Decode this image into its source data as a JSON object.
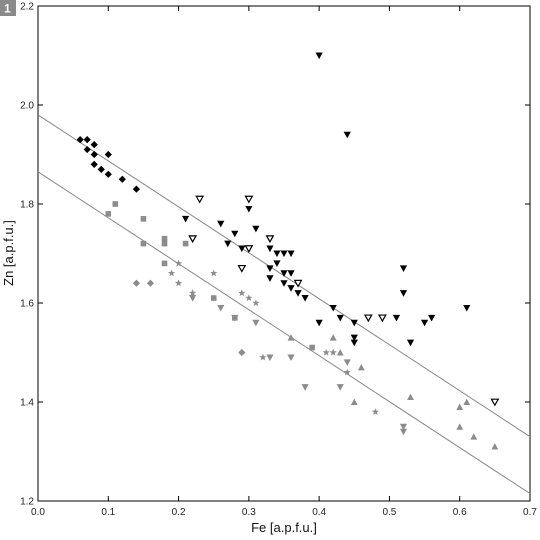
{
  "figure": {
    "panel_label": "1"
  },
  "chart_data": {
    "type": "scatter",
    "title": "",
    "xlabel": "Fe [a.p.f.u.]",
    "ylabel": "Zn [a.p.f.u.]",
    "xlim": [
      0.0,
      0.7
    ],
    "ylim": [
      1.2,
      2.2
    ],
    "x_ticks": [
      "0.0",
      "0.1",
      "0.2",
      "0.3",
      "0.4",
      "0.5",
      "0.6",
      "0.7"
    ],
    "y_ticks": [
      "1.2",
      "1.4",
      "1.6",
      "1.8",
      "2.0",
      "2.2"
    ],
    "grid": false,
    "legend": "none",
    "trend_lines": [
      {
        "x": [
          0.0,
          0.7
        ],
        "y": [
          1.98,
          1.33
        ],
        "color": "#888888"
      },
      {
        "x": [
          0.0,
          0.7
        ],
        "y": [
          1.865,
          1.215
        ],
        "color": "#888888"
      }
    ],
    "series": [
      {
        "marker": "diamond",
        "color": "#000000",
        "points": [
          [
            0.06,
            1.93
          ],
          [
            0.07,
            1.93
          ],
          [
            0.08,
            1.92
          ],
          [
            0.07,
            1.91
          ],
          [
            0.08,
            1.9
          ],
          [
            0.1,
            1.9
          ],
          [
            0.08,
            1.88
          ],
          [
            0.09,
            1.87
          ],
          [
            0.1,
            1.86
          ],
          [
            0.12,
            1.85
          ],
          [
            0.14,
            1.83
          ]
        ]
      },
      {
        "marker": "triangle-down",
        "color": "#000000",
        "points": [
          [
            0.4,
            2.1
          ],
          [
            0.44,
            1.94
          ],
          [
            0.3,
            1.81
          ],
          [
            0.3,
            1.79
          ],
          [
            0.31,
            1.75
          ],
          [
            0.26,
            1.76
          ],
          [
            0.21,
            1.77
          ],
          [
            0.28,
            1.74
          ],
          [
            0.27,
            1.72
          ],
          [
            0.29,
            1.71
          ],
          [
            0.33,
            1.71
          ],
          [
            0.34,
            1.7
          ],
          [
            0.35,
            1.7
          ],
          [
            0.36,
            1.7
          ],
          [
            0.34,
            1.68
          ],
          [
            0.33,
            1.67
          ],
          [
            0.35,
            1.66
          ],
          [
            0.36,
            1.66
          ],
          [
            0.33,
            1.65
          ],
          [
            0.35,
            1.64
          ],
          [
            0.37,
            1.64
          ],
          [
            0.36,
            1.63
          ],
          [
            0.37,
            1.62
          ],
          [
            0.38,
            1.61
          ],
          [
            0.42,
            1.59
          ],
          [
            0.43,
            1.57
          ],
          [
            0.45,
            1.56
          ],
          [
            0.4,
            1.56
          ],
          [
            0.45,
            1.53
          ],
          [
            0.45,
            1.52
          ],
          [
            0.52,
            1.67
          ],
          [
            0.52,
            1.62
          ],
          [
            0.51,
            1.57
          ],
          [
            0.55,
            1.56
          ],
          [
            0.56,
            1.57
          ],
          [
            0.53,
            1.52
          ],
          [
            0.61,
            1.59
          ]
        ]
      },
      {
        "marker": "triangle-down-open",
        "color": "#000000",
        "points": [
          [
            0.23,
            1.81
          ],
          [
            0.3,
            1.81
          ],
          [
            0.22,
            1.73
          ],
          [
            0.3,
            1.71
          ],
          [
            0.33,
            1.73
          ],
          [
            0.29,
            1.67
          ],
          [
            0.37,
            1.64
          ],
          [
            0.47,
            1.57
          ],
          [
            0.49,
            1.57
          ],
          [
            0.65,
            1.4
          ]
        ]
      },
      {
        "marker": "square",
        "color": "#8c8c8c",
        "points": [
          [
            0.1,
            1.78
          ],
          [
            0.11,
            1.8
          ],
          [
            0.15,
            1.77
          ],
          [
            0.18,
            1.73
          ],
          [
            0.18,
            1.72
          ],
          [
            0.21,
            1.72
          ],
          [
            0.15,
            1.72
          ],
          [
            0.18,
            1.68
          ],
          [
            0.25,
            1.61
          ],
          [
            0.28,
            1.57
          ],
          [
            0.39,
            1.51
          ]
        ]
      },
      {
        "marker": "diamond",
        "color": "#8c8c8c",
        "points": [
          [
            0.14,
            1.64
          ],
          [
            0.16,
            1.64
          ],
          [
            0.29,
            1.5
          ]
        ]
      },
      {
        "marker": "star",
        "color": "#8c8c8c",
        "points": [
          [
            0.2,
            1.68
          ],
          [
            0.19,
            1.66
          ],
          [
            0.2,
            1.64
          ],
          [
            0.22,
            1.62
          ],
          [
            0.25,
            1.66
          ],
          [
            0.29,
            1.62
          ],
          [
            0.3,
            1.61
          ],
          [
            0.31,
            1.6
          ],
          [
            0.32,
            1.49
          ],
          [
            0.41,
            1.5
          ],
          [
            0.42,
            1.5
          ],
          [
            0.44,
            1.46
          ],
          [
            0.48,
            1.38
          ]
        ]
      },
      {
        "marker": "triangle-down",
        "color": "#8c8c8c",
        "points": [
          [
            0.22,
            1.61
          ],
          [
            0.26,
            1.59
          ],
          [
            0.28,
            1.57
          ],
          [
            0.31,
            1.56
          ],
          [
            0.33,
            1.49
          ],
          [
            0.36,
            1.49
          ],
          [
            0.38,
            1.43
          ],
          [
            0.43,
            1.43
          ],
          [
            0.44,
            1.48
          ],
          [
            0.52,
            1.35
          ],
          [
            0.52,
            1.34
          ]
        ]
      },
      {
        "marker": "triangle-up",
        "color": "#8c8c8c",
        "points": [
          [
            0.36,
            1.53
          ],
          [
            0.42,
            1.53
          ],
          [
            0.43,
            1.5
          ],
          [
            0.46,
            1.47
          ],
          [
            0.45,
            1.4
          ],
          [
            0.53,
            1.41
          ],
          [
            0.6,
            1.39
          ],
          [
            0.6,
            1.35
          ],
          [
            0.61,
            1.4
          ],
          [
            0.62,
            1.33
          ],
          [
            0.65,
            1.31
          ]
        ]
      }
    ]
  }
}
